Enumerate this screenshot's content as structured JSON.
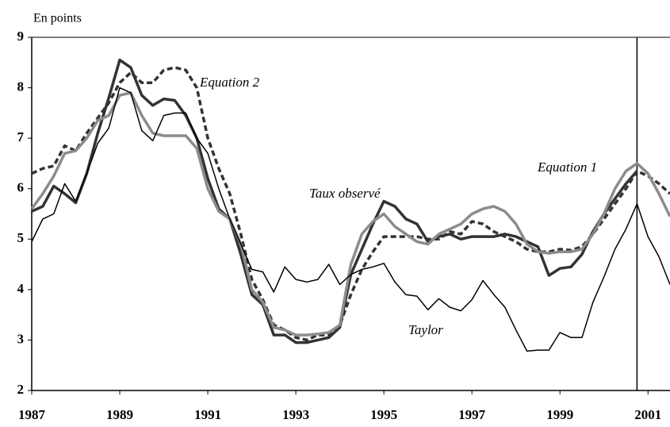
{
  "chart_data": {
    "type": "line",
    "y_label": "En points",
    "x": [
      1987,
      1987.25,
      1987.5,
      1987.75,
      1988,
      1988.25,
      1988.5,
      1988.75,
      1989,
      1989.25,
      1989.5,
      1989.75,
      1990,
      1990.25,
      1990.5,
      1990.75,
      1991,
      1991.25,
      1991.5,
      1991.75,
      1992,
      1992.25,
      1992.5,
      1992.75,
      1993,
      1993.25,
      1993.5,
      1993.75,
      1994,
      1994.25,
      1994.5,
      1994.75,
      1995,
      1995.25,
      1995.5,
      1995.75,
      1996,
      1996.25,
      1996.5,
      1996.75,
      1997,
      1997.25,
      1997.5,
      1997.75,
      1998,
      1998.25,
      1998.5,
      1998.75,
      1999,
      1999.25,
      1999.5,
      1999.75,
      2000,
      2000.25,
      2000.5,
      2000.75,
      2001,
      2001.25,
      2001.5
    ],
    "series": [
      {
        "name": "Taux observé",
        "color": "#333333",
        "style": "solid",
        "width": 3.5,
        "values": [
          5.55,
          5.65,
          6.05,
          5.9,
          5.72,
          6.3,
          7.1,
          7.8,
          8.55,
          8.4,
          7.85,
          7.65,
          7.78,
          7.75,
          7.45,
          7.0,
          6.2,
          5.6,
          5.4,
          4.7,
          3.9,
          3.7,
          3.1,
          3.1,
          2.95,
          2.95,
          3.0,
          3.05,
          3.25,
          4.3,
          4.8,
          5.3,
          5.75,
          5.65,
          5.4,
          5.3,
          4.95,
          5.05,
          5.1,
          5.0,
          5.05,
          5.05,
          5.05,
          5.1,
          5.05,
          4.95,
          4.85,
          4.28,
          4.42,
          4.45,
          4.7,
          5.15,
          5.5,
          5.8,
          6.1,
          6.35,
          null,
          null,
          null
        ]
      },
      {
        "name": "Equation 2",
        "color": "#333333",
        "style": "dashed",
        "width": 3.5,
        "values": [
          6.3,
          6.4,
          6.45,
          6.85,
          6.75,
          7.1,
          7.4,
          7.7,
          8.1,
          8.3,
          8.1,
          8.1,
          8.35,
          8.4,
          8.35,
          8.0,
          7.0,
          6.4,
          5.9,
          5.1,
          4.2,
          3.8,
          3.3,
          3.2,
          3.05,
          3.0,
          3.1,
          3.1,
          3.3,
          3.9,
          4.4,
          4.75,
          5.05,
          5.05,
          5.05,
          5.05,
          5.0,
          5.0,
          5.15,
          5.1,
          5.35,
          5.3,
          5.15,
          5.05,
          4.95,
          4.8,
          4.75,
          4.75,
          4.8,
          4.78,
          4.85,
          5.1,
          5.4,
          5.7,
          6.0,
          6.35,
          6.25,
          6.1,
          5.9
        ]
      },
      {
        "name": "Equation 1",
        "color": "#8c8c8c",
        "style": "solid",
        "width": 3.5,
        "values": [
          5.6,
          5.9,
          6.25,
          6.7,
          6.75,
          7.0,
          7.35,
          7.45,
          7.85,
          7.9,
          7.45,
          7.1,
          7.05,
          7.05,
          7.05,
          6.8,
          6.0,
          5.55,
          5.4,
          4.9,
          4.0,
          3.75,
          3.25,
          3.2,
          3.1,
          3.1,
          3.12,
          3.15,
          3.3,
          4.5,
          5.1,
          5.35,
          5.5,
          5.25,
          5.1,
          4.95,
          4.9,
          5.1,
          5.2,
          5.3,
          5.5,
          5.6,
          5.65,
          5.55,
          5.3,
          4.9,
          4.75,
          4.72,
          4.75,
          4.75,
          4.8,
          5.1,
          5.5,
          6.0,
          6.35,
          6.5,
          6.3,
          5.9,
          5.45
        ]
      },
      {
        "name": "Taylor",
        "color": "#000000",
        "style": "solid",
        "width": 1.5,
        "values": [
          4.95,
          5.4,
          5.5,
          6.1,
          5.75,
          6.3,
          6.9,
          7.2,
          8.0,
          7.9,
          7.15,
          6.95,
          7.45,
          7.5,
          7.5,
          7.0,
          6.7,
          6.0,
          5.4,
          4.9,
          4.4,
          4.35,
          3.95,
          4.45,
          4.2,
          4.15,
          4.2,
          4.5,
          4.1,
          4.3,
          4.4,
          4.45,
          4.52,
          4.15,
          3.9,
          3.87,
          3.6,
          3.82,
          3.65,
          3.58,
          3.8,
          4.18,
          3.9,
          3.65,
          3.2,
          2.78,
          2.8,
          2.8,
          3.15,
          3.05,
          3.05,
          3.75,
          4.25,
          4.8,
          5.2,
          5.7,
          5.05,
          4.65,
          4.1
        ]
      }
    ],
    "vertical_line": 2000.75,
    "xlim": [
      1987,
      2001.5
    ],
    "xticks": [
      1987,
      1989,
      1991,
      1993,
      1995,
      1997,
      1999,
      2001
    ],
    "ylim": [
      2,
      9
    ],
    "yticks": [
      2,
      3,
      4,
      5,
      6,
      7,
      8,
      9
    ]
  }
}
